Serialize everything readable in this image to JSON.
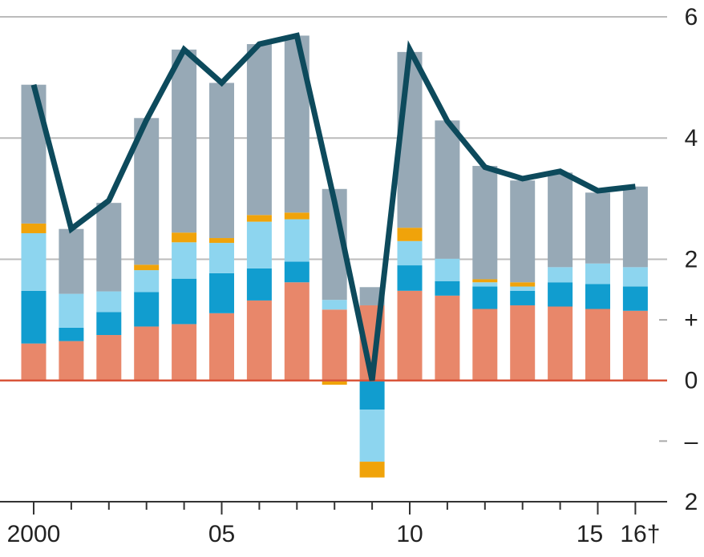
{
  "chart_data": {
    "type": "bar",
    "stacked": true,
    "categories": [
      "2000",
      null,
      null,
      null,
      null,
      "05",
      null,
      null,
      null,
      null,
      "10",
      null,
      null,
      null,
      null,
      "15",
      "16†"
    ],
    "series": [
      {
        "color": "#e8876a",
        "values": [
          0.61,
          0.65,
          0.75,
          0.89,
          0.93,
          1.11,
          1.32,
          1.62,
          1.17,
          1.24,
          1.48,
          1.4,
          1.18,
          1.24,
          1.22,
          1.18,
          1.15
        ]
      },
      {
        "color": "#119dcf",
        "values": [
          0.87,
          0.22,
          0.38,
          0.57,
          0.75,
          0.66,
          0.53,
          0.34,
          0,
          -0.48,
          0.42,
          0.24,
          0.37,
          0.24,
          0.4,
          0.41,
          0.4
        ]
      },
      {
        "color": "#8dd5ef",
        "values": [
          0.95,
          0.56,
          0.34,
          0.36,
          0.6,
          0.5,
          0.77,
          0.7,
          0.16,
          -0.86,
          0.4,
          0.37,
          0.07,
          0.07,
          0.25,
          0.34,
          0.32
        ]
      },
      {
        "color": "#f0a30a",
        "values": [
          0.16,
          0,
          0,
          0.09,
          0.16,
          0.08,
          0.11,
          0.11,
          -0.07,
          -0.26,
          0.22,
          0,
          0.05,
          0.07,
          0,
          0,
          0
        ]
      },
      {
        "color": "#97a9b6",
        "values": [
          2.29,
          1.07,
          1.46,
          2.42,
          3.02,
          2.56,
          2.82,
          2.92,
          1.83,
          0.3,
          2.9,
          2.28,
          1.87,
          1.68,
          1.56,
          1.17,
          1.33
        ]
      },
      {
        "type": "line",
        "color": "#0d4a5c",
        "values": [
          4.88,
          2.5,
          2.97,
          4.3,
          5.46,
          4.91,
          5.55,
          5.69,
          2.95,
          0,
          5.46,
          4.28,
          3.52,
          3.33,
          3.45,
          3.13,
          3.2
        ]
      }
    ],
    "ylim": [
      -2,
      6
    ],
    "yticks": [
      6,
      4,
      2,
      {
        "value": 1,
        "label": "+"
      },
      0,
      {
        "value": -1,
        "label": "–"
      },
      {
        "value": -2,
        "label": "2"
      }
    ],
    "grid": true
  }
}
